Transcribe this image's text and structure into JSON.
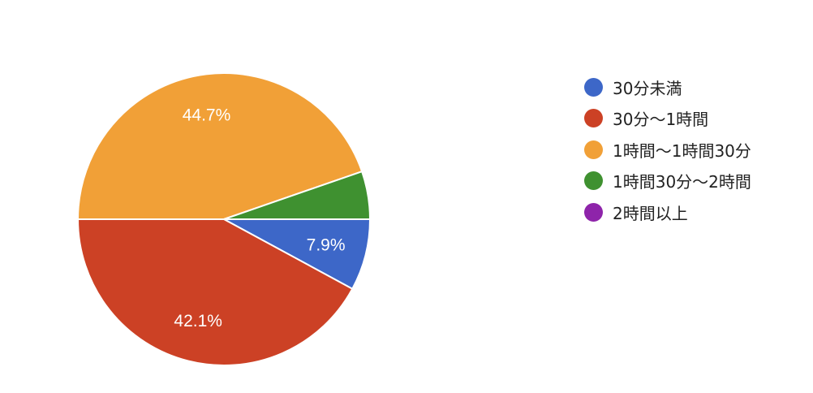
{
  "chart_data": {
    "type": "pie",
    "title": "",
    "legend_position": "right",
    "slices": [
      {
        "label": "30分未満",
        "value": 7.9,
        "display": "7.9%",
        "color": "#3d67c8"
      },
      {
        "label": "30分〜1時間",
        "value": 42.1,
        "display": "42.1%",
        "color": "#cc4125"
      },
      {
        "label": "1時間〜1時間30分",
        "value": 44.7,
        "display": "44.7%",
        "color": "#f1a037"
      },
      {
        "label": "1時間30分〜2時間",
        "value": 5.3,
        "display": "",
        "color": "#3f9130"
      },
      {
        "label": "2時間以上",
        "value": 0,
        "display": "",
        "color": "#8e24aa"
      }
    ]
  }
}
